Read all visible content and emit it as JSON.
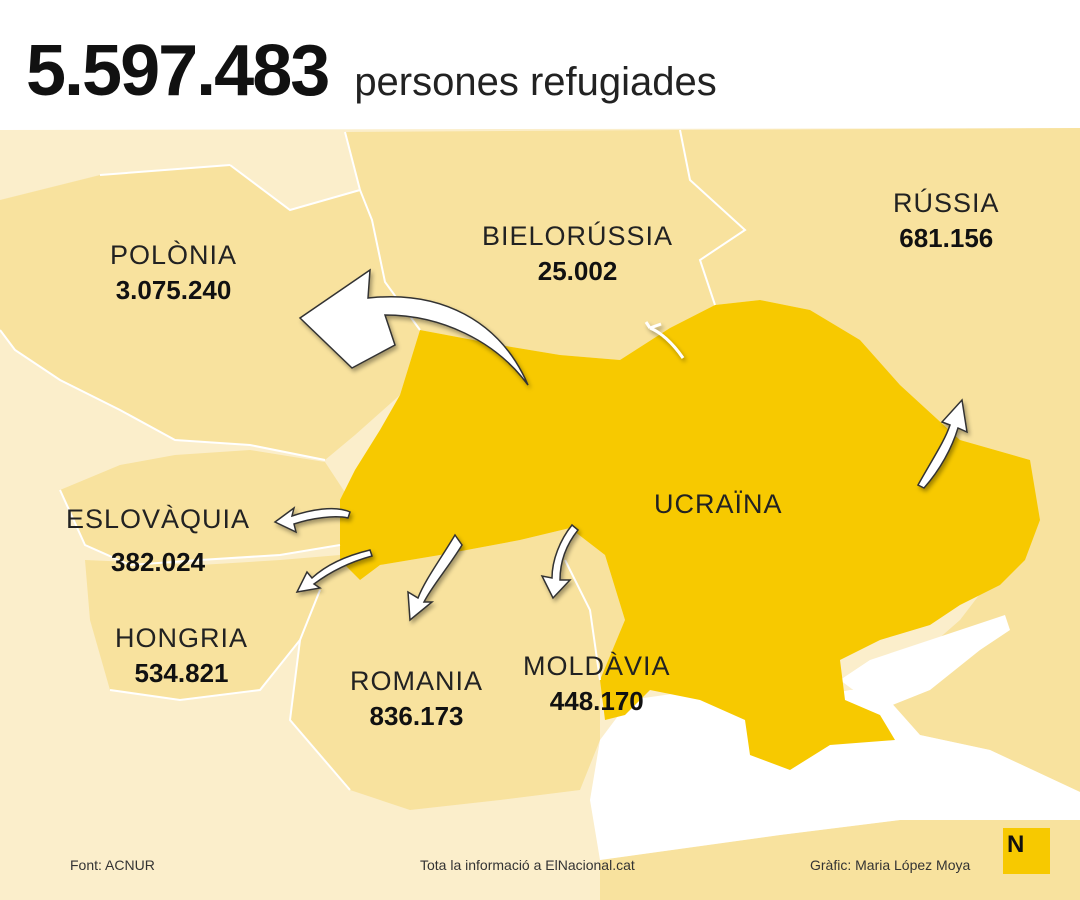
{
  "title": {
    "total": "5.597.483",
    "subtitle": "persones refugiades"
  },
  "colors": {
    "ukraine": "#f7c900",
    "neighbours": "#f8e29e",
    "background_land": "#fbeecb",
    "sea": "#ffffff",
    "arrows": "#ffffff",
    "text": "#111111"
  },
  "countries": [
    {
      "id": "polonia",
      "name": "POLÒNIA",
      "refugees": "3.075.240"
    },
    {
      "id": "bielorussia",
      "name": "BIELORÚSSIA",
      "refugees": "25.002"
    },
    {
      "id": "russia",
      "name": "RÚSSIA",
      "refugees": "681.156"
    },
    {
      "id": "eslovaquia",
      "name": "ESLOVÀQUIA",
      "refugees": "382.024"
    },
    {
      "id": "hongria",
      "name": "HONGRIA",
      "refugees": "534.821"
    },
    {
      "id": "romania",
      "name": "ROMANIA",
      "refugees": "836.173"
    },
    {
      "id": "moldavia",
      "name": "MOLDÀVIA",
      "refugees": "448.170"
    },
    {
      "id": "ucraina",
      "name": "UCRAÏNA"
    }
  ],
  "footer": {
    "source": "Font: ACNUR",
    "more_info": "Tota la informació a ElNacional.cat",
    "credit": "Gràfic: Maria López Moya"
  },
  "logo": {
    "letter": "N"
  }
}
